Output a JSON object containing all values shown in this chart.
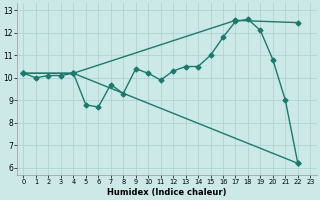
{
  "xlabel": "Humidex (Indice chaleur)",
  "xlim": [
    -0.5,
    23.5
  ],
  "ylim": [
    5.7,
    13.3
  ],
  "yticks": [
    6,
    7,
    8,
    9,
    10,
    11,
    12,
    13
  ],
  "xticks": [
    0,
    1,
    2,
    3,
    4,
    5,
    6,
    7,
    8,
    9,
    10,
    11,
    12,
    13,
    14,
    15,
    16,
    17,
    18,
    19,
    20,
    21,
    22,
    23
  ],
  "bg_color": "#cce9e7",
  "grid_color": "#aed4d1",
  "line_color": "#1a7a6e",
  "line1_x": [
    0,
    1,
    2,
    3,
    4,
    5,
    6,
    7,
    8,
    9,
    10,
    11,
    12,
    13,
    14,
    15,
    16,
    17,
    18,
    19,
    20,
    21,
    22
  ],
  "line1_y": [
    10.2,
    10.0,
    10.1,
    10.1,
    10.2,
    8.8,
    8.7,
    9.7,
    9.3,
    10.4,
    10.2,
    9.9,
    10.3,
    10.5,
    10.5,
    11.0,
    11.8,
    12.5,
    12.6,
    12.1,
    10.8,
    9.0,
    6.2
  ],
  "line2_x": [
    0,
    4,
    17,
    22
  ],
  "line2_y": [
    10.2,
    10.2,
    12.55,
    12.45
  ],
  "line3_x": [
    0,
    4,
    22
  ],
  "line3_y": [
    10.2,
    10.2,
    6.2
  ],
  "marker": "D",
  "markersize": 2.5,
  "linewidth": 1.0
}
